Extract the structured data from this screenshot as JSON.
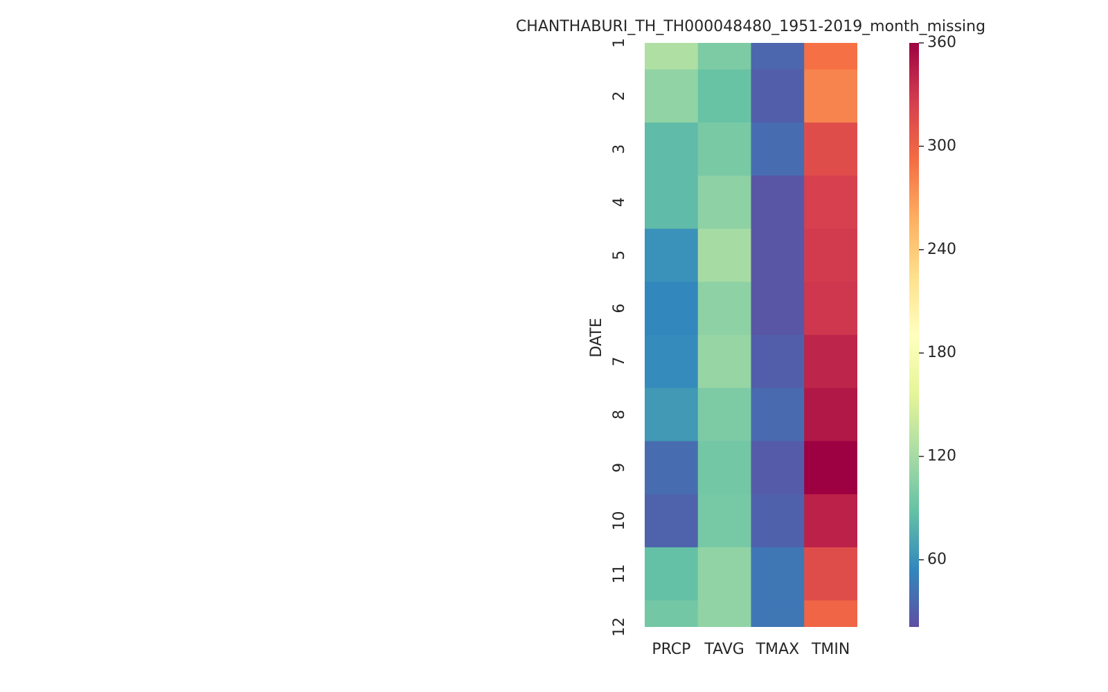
{
  "chart_data": {
    "type": "heatmap",
    "title": "CHANTHABURI_TH_TH000048480_1951-2019_month_missing",
    "ylabel": "DATE",
    "x_categories": [
      "PRCP",
      "TAVG",
      "TMAX",
      "TMIN"
    ],
    "y_categories": [
      "1",
      "2",
      "3",
      "4",
      "5",
      "6",
      "7",
      "8",
      "9",
      "10",
      "11",
      "12"
    ],
    "values": [
      [
        125,
        100,
        35,
        290
      ],
      [
        110,
        90,
        30,
        280
      ],
      [
        85,
        98,
        38,
        315
      ],
      [
        85,
        108,
        25,
        325
      ],
      [
        60,
        120,
        25,
        328
      ],
      [
        55,
        108,
        25,
        330
      ],
      [
        57,
        113,
        30,
        340
      ],
      [
        65,
        100,
        37,
        348
      ],
      [
        38,
        95,
        28,
        360
      ],
      [
        33,
        97,
        32,
        342
      ],
      [
        88,
        110,
        45,
        315
      ],
      [
        95,
        110,
        45,
        298
      ]
    ],
    "colormap": "Spectral_r",
    "zlim": [
      21,
      360
    ],
    "zticks": [
      60,
      120,
      180,
      240,
      300,
      360
    ]
  }
}
